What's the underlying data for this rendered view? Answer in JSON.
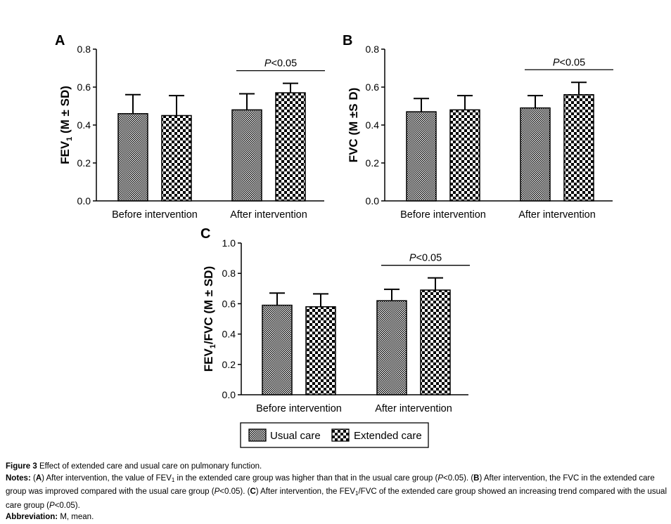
{
  "chart_data": [
    {
      "panel": "A",
      "type": "bar",
      "ylabel": "FEV1 (M ± SD)",
      "ylabel_main": "FEV",
      "ylabel_sub": "1",
      "ylabel_rest": " (M ± SD)",
      "ylim": [
        0,
        0.8
      ],
      "yticks": [
        "0.0",
        "0.2",
        "0.4",
        "0.6",
        "0.8"
      ],
      "categories": [
        "Before intervention",
        "After intervention"
      ],
      "series": [
        {
          "name": "Usual care",
          "values": [
            0.46,
            0.48
          ],
          "sd": [
            0.1,
            0.085
          ]
        },
        {
          "name": "Extended care",
          "values": [
            0.45,
            0.57
          ],
          "sd": [
            0.105,
            0.05
          ]
        }
      ],
      "annotation": {
        "category": "After intervention",
        "text_italic": "P",
        "text_rest": "<0.05"
      }
    },
    {
      "panel": "B",
      "type": "bar",
      "ylabel": "FVC (M ±S D)",
      "ylabel_main": "FVC (M ±S D)",
      "ylabel_sub": "",
      "ylabel_rest": "",
      "ylim": [
        0,
        0.8
      ],
      "yticks": [
        "0.0",
        "0.2",
        "0.4",
        "0.6",
        "0.8"
      ],
      "categories": [
        "Before intervention",
        "After intervention"
      ],
      "series": [
        {
          "name": "Usual care",
          "values": [
            0.47,
            0.49
          ],
          "sd": [
            0.07,
            0.065
          ]
        },
        {
          "name": "Extended care",
          "values": [
            0.48,
            0.56
          ],
          "sd": [
            0.075,
            0.065
          ]
        }
      ],
      "annotation": {
        "category": "After intervention",
        "text_italic": "P",
        "text_rest": "<0.05"
      }
    },
    {
      "panel": "C",
      "type": "bar",
      "ylabel": "FEV1/FVC (M ± SD)",
      "ylabel_main": "FEV",
      "ylabel_sub": "1",
      "ylabel_rest": "/FVC (M ± SD)",
      "ylim": [
        0,
        1.0
      ],
      "yticks": [
        "0.0",
        "0.2",
        "0.4",
        "0.6",
        "0.8",
        "1.0"
      ],
      "categories": [
        "Before intervention",
        "After intervention"
      ],
      "series": [
        {
          "name": "Usual care",
          "values": [
            0.59,
            0.62
          ],
          "sd": [
            0.08,
            0.075
          ]
        },
        {
          "name": "Extended care",
          "values": [
            0.58,
            0.69
          ],
          "sd": [
            0.085,
            0.08
          ]
        }
      ],
      "annotation": {
        "category": "After intervention",
        "text_italic": "P",
        "text_rest": "<0.05"
      }
    }
  ],
  "legend": {
    "items": [
      {
        "label": "Usual care",
        "pattern": "dense"
      },
      {
        "label": "Extended care",
        "pattern": "checker"
      }
    ]
  },
  "caption": {
    "title_bold": "Figure 3",
    "title_text": "Effect of extended care and usual care on pulmonary function.",
    "notes_label": "Notes:",
    "notes_a_1": "After intervention, the value of FEV",
    "notes_a_sub": "1",
    "notes_a_2": "in the extended care group was higher than that in the usual care group (",
    "notes_a_3": "<0.05).",
    "notes_b_1": "After intervention, the FVC in the extended care group was improved compared with the usual care group (",
    "notes_b_2": "<0.05).",
    "notes_c_1": "After intervention, the FEV",
    "notes_c_sub": "1",
    "notes_c_2": "/FVC of the extended care group showed an increasing trend compared with the usual care group (",
    "notes_c_3": "<0.05).",
    "p_symbol": "P",
    "abbrev_label": "Abbreviation:",
    "abbrev_text": "M, mean."
  }
}
